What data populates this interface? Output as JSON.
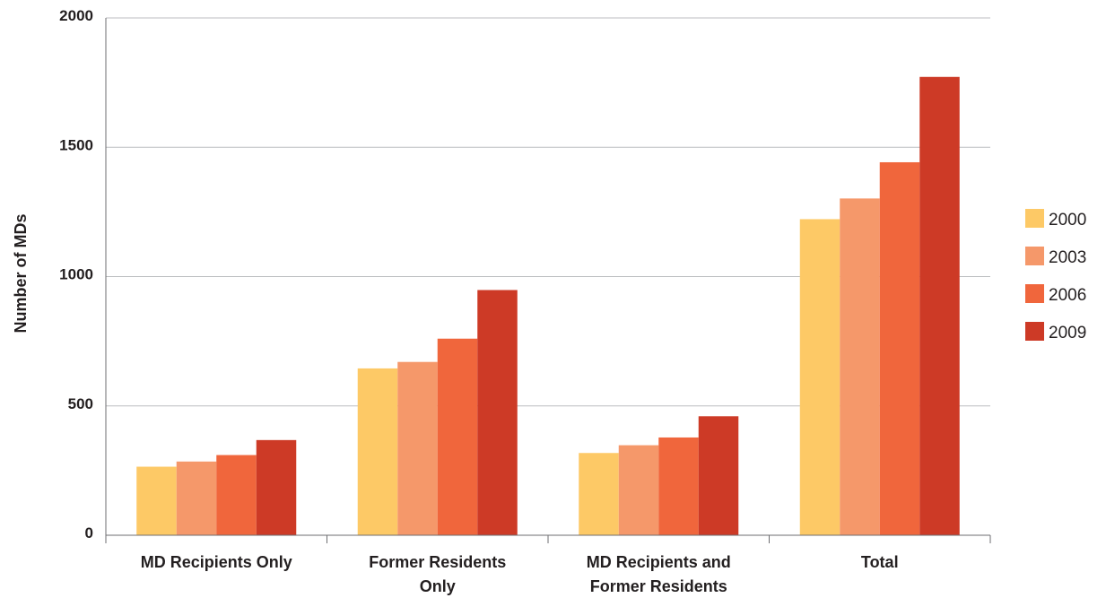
{
  "chart_data": {
    "type": "bar",
    "title": "",
    "xlabel": "",
    "ylabel": "Number of MDs",
    "ylim": [
      0,
      2000
    ],
    "yticks": [
      0,
      500,
      1000,
      1500,
      2000
    ],
    "grid": true,
    "legend_position": "right",
    "categories": [
      [
        "MD Recipients Only"
      ],
      [
        "Former Residents",
        "Only"
      ],
      [
        "MD Recipients and",
        "Former Residents"
      ],
      [
        "Total"
      ]
    ],
    "series": [
      {
        "name": "2000",
        "color": "#fdc966",
        "values": [
          265,
          645,
          318,
          1222
        ]
      },
      {
        "name": "2003",
        "color": "#f5986a",
        "values": [
          285,
          670,
          348,
          1302
        ]
      },
      {
        "name": "2006",
        "color": "#f0663c",
        "values": [
          310,
          760,
          378,
          1442
        ]
      },
      {
        "name": "2009",
        "color": "#cd3a26",
        "values": [
          368,
          948,
          460,
          1772
        ]
      }
    ]
  }
}
